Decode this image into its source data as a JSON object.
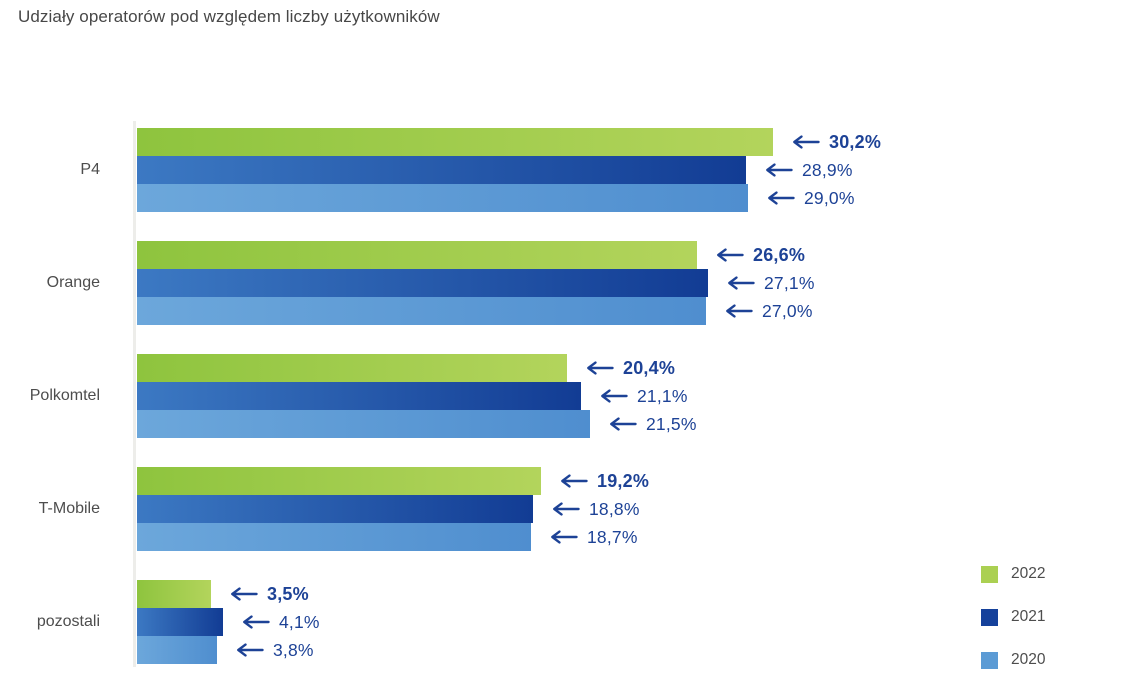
{
  "title": "Udziały operatorów pod względem liczby użytkowników",
  "colors": {
    "value_text": "#1d4296",
    "category_text": "#4d4d4d",
    "title_text": "#474747",
    "axis_line": "#ededea",
    "green_2022": "#abd052",
    "navy_2021": "#15419b",
    "blue_2020": "#5b9bd5"
  },
  "chart_data": {
    "type": "bar",
    "orientation": "horizontal",
    "title": "Udziały operatorów pod względem liczby użytkowników",
    "unit": "%",
    "xlim": [
      0,
      46.8
    ],
    "grid": false,
    "legend_position": "bottom-right",
    "annotation_style": "left-arrow-with-value",
    "categories": [
      "P4",
      "Orange",
      "Polkomtel",
      "T-Mobile",
      "pozostali"
    ],
    "series": [
      {
        "name": "2022",
        "color": "#abd052",
        "gradient": [
          "#8ec43e",
          "#b3d45c"
        ],
        "bold_labels": true,
        "values": [
          30.2,
          26.6,
          20.4,
          19.2,
          3.5
        ],
        "labels": [
          "30,2%",
          "26,6%",
          "20,4%",
          "19,2%",
          "3,5%"
        ]
      },
      {
        "name": "2021",
        "color": "#15419b",
        "gradient": [
          "#3c79c3",
          "#123c94"
        ],
        "bold_labels": false,
        "values": [
          28.9,
          27.1,
          21.1,
          18.8,
          4.1
        ],
        "labels": [
          "28,9%",
          "27,1%",
          "21,1%",
          "18,8%",
          "4,1%"
        ]
      },
      {
        "name": "2020",
        "color": "#5b9bd5",
        "gradient": [
          "#6ca7db",
          "#4f8ecf"
        ],
        "bold_labels": false,
        "values": [
          29.0,
          27.0,
          21.5,
          18.7,
          3.8
        ],
        "labels": [
          "29,0%",
          "27,0%",
          "21,5%",
          "18,7%",
          "3,8%"
        ]
      }
    ],
    "legend": [
      "2022",
      "2021",
      "2020"
    ]
  }
}
